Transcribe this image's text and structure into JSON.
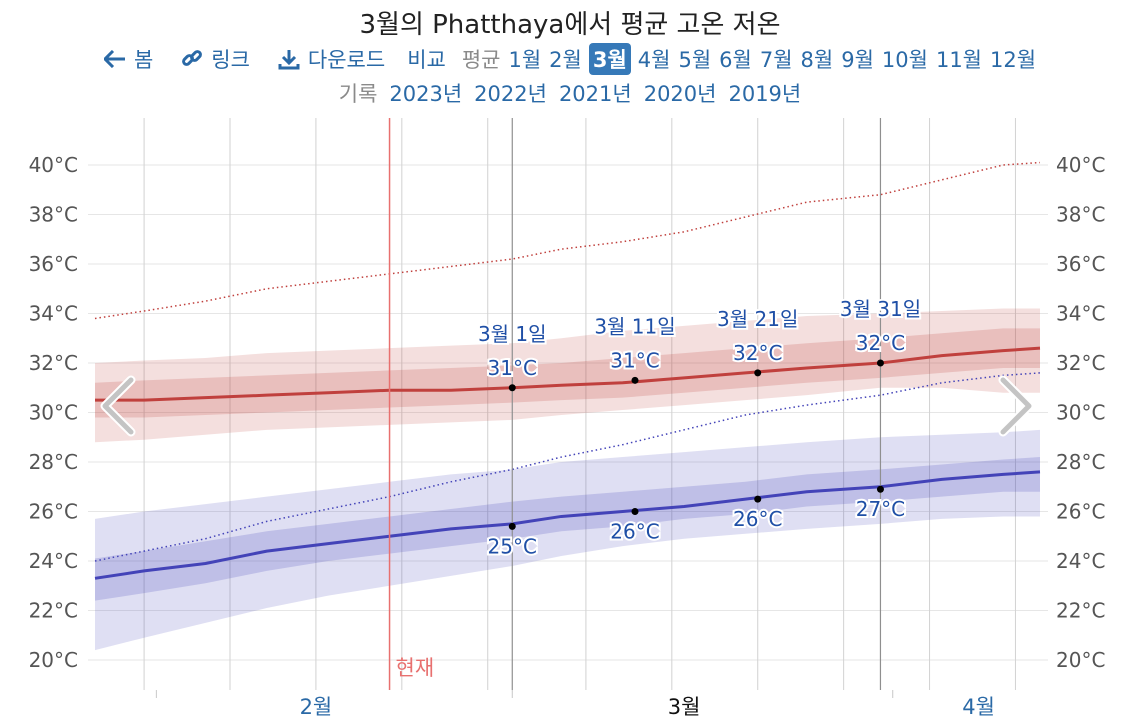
{
  "title": "3월의 Phatthaya에서 평균 고온 저온",
  "nav": {
    "back": "봄",
    "link": "링크",
    "download": "다운로드",
    "compare": "비교",
    "average": "평균",
    "months": [
      "1월",
      "2월",
      "3월",
      "4월",
      "5월",
      "6월",
      "7월",
      "8월",
      "9월",
      "10월",
      "11월",
      "12월"
    ],
    "selected_month": "3월"
  },
  "records": {
    "label": "기록",
    "years": [
      "2023년",
      "2022년",
      "2021년",
      "2020년",
      "2019년"
    ]
  },
  "colors": {
    "high": "#c0403d",
    "low": "#4343b8",
    "now": "#e8706f",
    "link": "#2a69a6"
  },
  "icons": {
    "back": "arrow-left-icon",
    "link": "link-icon",
    "download": "download-icon",
    "prev": "chevron-left-icon",
    "next": "chevron-right-icon"
  },
  "chart_data": {
    "type": "line",
    "y_unit": "°C",
    "ylim": [
      19,
      42
    ],
    "yticks": [
      "20°C",
      "22°C",
      "24°C",
      "26°C",
      "28°C",
      "30°C",
      "32°C",
      "34°C",
      "36°C",
      "38°C",
      "40°C"
    ],
    "ytick_values": [
      20,
      22,
      24,
      26,
      28,
      30,
      32,
      34,
      36,
      38,
      40
    ],
    "month_labels": [
      "2월",
      "3월",
      "4월"
    ],
    "current_month": "3월",
    "now_label": "현재",
    "now_date": "02-20",
    "x_start": "01-27",
    "x_end": "04-13",
    "dates": [
      "01-27",
      "01-31",
      "02-05",
      "02-10",
      "02-15",
      "02-20",
      "02-25",
      "03-01",
      "03-05",
      "03-10",
      "03-15",
      "03-20",
      "03-25",
      "03-31",
      "04-05",
      "04-10",
      "04-13"
    ],
    "high": {
      "avg": [
        30.5,
        30.5,
        30.6,
        30.7,
        30.8,
        30.9,
        30.9,
        31.0,
        31.1,
        31.2,
        31.4,
        31.6,
        31.8,
        32.0,
        32.3,
        32.5,
        32.6
      ],
      "p25": [
        29.8,
        29.8,
        29.9,
        30.0,
        30.1,
        30.2,
        30.3,
        30.4,
        30.5,
        30.6,
        30.8,
        31.0,
        31.2,
        31.4,
        31.6,
        31.8,
        31.8
      ],
      "p75": [
        31.2,
        31.3,
        31.4,
        31.5,
        31.6,
        31.7,
        31.8,
        31.9,
        32.0,
        32.2,
        32.4,
        32.6,
        32.8,
        33.0,
        33.2,
        33.4,
        33.4
      ],
      "p10": [
        28.8,
        28.9,
        29.1,
        29.3,
        29.4,
        29.5,
        29.6,
        29.7,
        29.9,
        30.1,
        30.3,
        30.5,
        30.7,
        31.0,
        31.0,
        30.8,
        30.8
      ],
      "p90": [
        32.0,
        32.1,
        32.2,
        32.4,
        32.5,
        32.6,
        32.7,
        32.8,
        33.0,
        33.3,
        33.5,
        33.7,
        33.9,
        34.0,
        34.1,
        34.2,
        34.2
      ],
      "record": [
        33.8,
        34.1,
        34.5,
        35.0,
        35.3,
        35.6,
        35.9,
        36.2,
        36.6,
        36.9,
        37.3,
        37.9,
        38.5,
        38.8,
        39.4,
        40.0,
        40.1
      ]
    },
    "low": {
      "avg": [
        23.3,
        23.6,
        23.9,
        24.4,
        24.7,
        25.0,
        25.3,
        25.5,
        25.8,
        26.0,
        26.2,
        26.5,
        26.8,
        27.0,
        27.3,
        27.5,
        27.6
      ],
      "p25": [
        22.4,
        22.7,
        23.1,
        23.6,
        24.0,
        24.3,
        24.6,
        24.9,
        25.2,
        25.4,
        25.7,
        25.9,
        26.2,
        26.4,
        26.6,
        26.8,
        26.8
      ],
      "p75": [
        24.1,
        24.4,
        24.8,
        25.2,
        25.5,
        25.8,
        26.1,
        26.4,
        26.6,
        26.8,
        27.0,
        27.2,
        27.5,
        27.7,
        27.9,
        28.1,
        28.2
      ],
      "p10": [
        20.4,
        20.9,
        21.5,
        22.1,
        22.6,
        23.0,
        23.4,
        23.8,
        24.2,
        24.6,
        24.9,
        25.1,
        25.3,
        25.5,
        25.7,
        25.8,
        25.8
      ],
      "p90": [
        25.7,
        26.0,
        26.3,
        26.6,
        26.9,
        27.2,
        27.5,
        27.7,
        28.0,
        28.2,
        28.4,
        28.6,
        28.8,
        29.0,
        29.1,
        29.2,
        29.3
      ],
      "record": [
        24.0,
        24.4,
        24.9,
        25.6,
        26.1,
        26.6,
        27.2,
        27.7,
        28.2,
        28.7,
        29.3,
        29.9,
        30.3,
        30.7,
        31.2,
        31.5,
        31.6
      ]
    },
    "annotations": [
      {
        "date": "03-01",
        "label": "3월 1일",
        "high": 31.0,
        "high_label": "31°C",
        "low": 25.4,
        "low_label": "25°C"
      },
      {
        "date": "03-11",
        "label": "3월 11일",
        "high": 31.3,
        "high_label": "31°C",
        "low": 26.0,
        "low_label": "26°C"
      },
      {
        "date": "03-21",
        "label": "3월 21일",
        "high": 31.6,
        "high_label": "32°C",
        "low": 26.5,
        "low_label": "26°C"
      },
      {
        "date": "03-31",
        "label": "3월 31일",
        "high": 32.0,
        "high_label": "32°C",
        "low": 26.9,
        "low_label": "27°C"
      }
    ],
    "grid": true
  }
}
